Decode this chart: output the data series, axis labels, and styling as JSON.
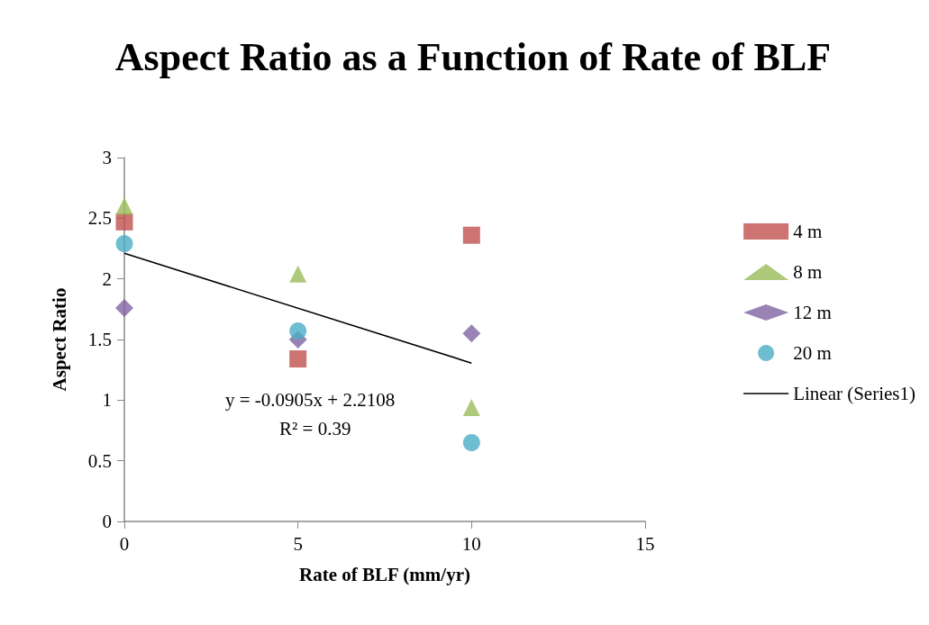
{
  "chart_data": {
    "type": "scatter",
    "title": "Aspect Ratio as a Function of Rate of BLF",
    "xlabel": "Rate of BLF (mm/yr)",
    "ylabel": "Aspect Ratio",
    "x": [
      0,
      5,
      10
    ],
    "series": [
      {
        "name": "4 m",
        "color": "#c0504d",
        "marker": "square",
        "values": [
          2.47,
          1.34,
          2.36
        ]
      },
      {
        "name": "8 m",
        "color": "#9bbb59",
        "marker": "triangle",
        "values": [
          2.6,
          2.04,
          0.94
        ]
      },
      {
        "name": "12 m",
        "color": "#8064a2",
        "marker": "diamond",
        "values": [
          1.76,
          1.5,
          1.55
        ]
      },
      {
        "name": "20 m",
        "color": "#4bacc6",
        "marker": "circle",
        "values": [
          2.29,
          1.57,
          0.65
        ]
      },
      {
        "name": "Linear (Series1)",
        "type": "line",
        "color": "#000000",
        "marker": "none",
        "x": [
          0,
          10
        ],
        "values": [
          2.2108,
          1.3058
        ]
      }
    ],
    "xlim": [
      0,
      15
    ],
    "xticks": [
      0,
      5,
      10,
      15
    ],
    "ylim": [
      0,
      3
    ],
    "yticks": [
      0,
      0.5,
      1,
      1.5,
      2,
      2.5,
      3
    ],
    "annotations": [
      "y = -0.0905x + 2.2108",
      "R² = 0.39"
    ],
    "grid": false,
    "legend": "right"
  }
}
